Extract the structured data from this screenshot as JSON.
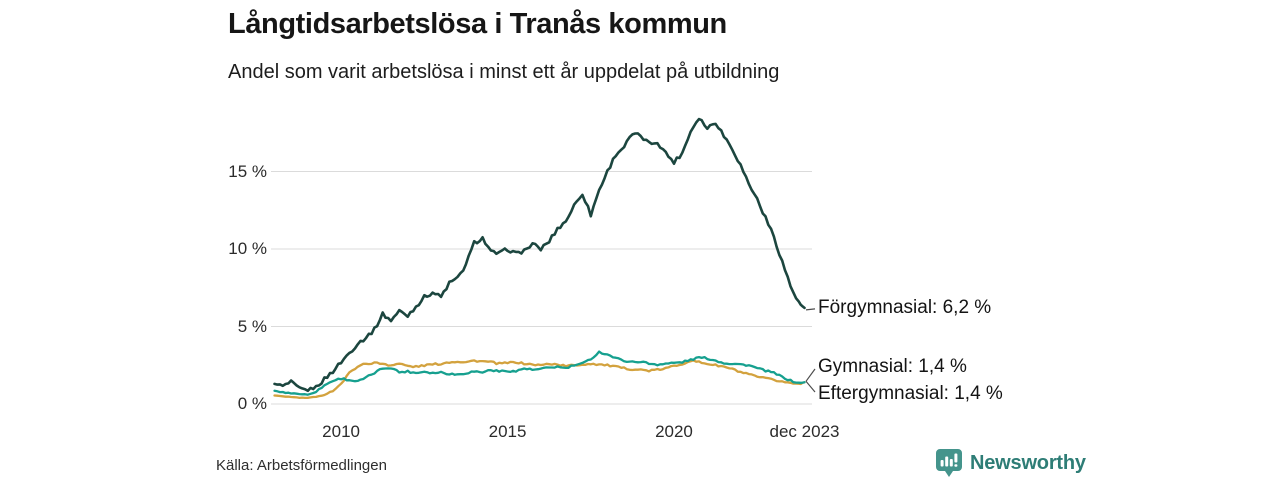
{
  "meta": {
    "title": "Långtidsarbetslösa i Tranås kommun",
    "subtitle": "Andel som varit arbetslösa i minst ett år uppdelat på utbildning",
    "source": "Källa: Arbetsförmedlingen"
  },
  "brand": {
    "name": "Newsworthy",
    "logo_icon": "bar-chart-speech-bubble-icon",
    "text_color": "#2e7d76",
    "icon_color": "#44948c"
  },
  "chart_data": {
    "type": "line",
    "title": "Långtidsarbetslösa i Tranås kommun",
    "subtitle": "Andel som varit arbetslösa i minst ett år uppdelat på utbildning",
    "x_range": [
      2008.0,
      2023.92
    ],
    "ylim": [
      0,
      19
    ],
    "grid": true,
    "legend_position": "right-end-labels",
    "y_ticks": [
      {
        "v": 0,
        "label": "0 %"
      },
      {
        "v": 5,
        "label": "5 %"
      },
      {
        "v": 10,
        "label": "10 %"
      },
      {
        "v": 15,
        "label": "15 %"
      }
    ],
    "x_ticks": [
      {
        "v": 2010,
        "label": "2010"
      },
      {
        "v": 2015,
        "label": "2015"
      },
      {
        "v": 2020,
        "label": "2020"
      },
      {
        "v": 2023.92,
        "label": "dec 2023"
      }
    ],
    "series": [
      {
        "name": "Förgymnasial",
        "end_value": "6,2 %",
        "end_label": "Förgymnasial: 6,2 %",
        "color": "#1c463f",
        "points": [
          [
            2008.0,
            1.3
          ],
          [
            2008.25,
            1.15
          ],
          [
            2008.5,
            1.4
          ],
          [
            2008.75,
            1.0
          ],
          [
            2009.0,
            0.9
          ],
          [
            2009.25,
            1.1
          ],
          [
            2009.5,
            1.6
          ],
          [
            2009.75,
            2.1
          ],
          [
            2010.0,
            2.7
          ],
          [
            2010.25,
            3.3
          ],
          [
            2010.5,
            3.9
          ],
          [
            2010.75,
            4.3
          ],
          [
            2011.0,
            4.8
          ],
          [
            2011.25,
            5.8
          ],
          [
            2011.5,
            5.4
          ],
          [
            2011.75,
            6.0
          ],
          [
            2012.0,
            5.7
          ],
          [
            2012.25,
            6.3
          ],
          [
            2012.5,
            6.9
          ],
          [
            2012.75,
            7.2
          ],
          [
            2013.0,
            6.9
          ],
          [
            2013.25,
            7.8
          ],
          [
            2013.5,
            8.1
          ],
          [
            2013.75,
            9.0
          ],
          [
            2014.0,
            10.4
          ],
          [
            2014.25,
            10.7
          ],
          [
            2014.5,
            9.8
          ],
          [
            2014.75,
            9.7
          ],
          [
            2015.0,
            10.0
          ],
          [
            2015.25,
            9.7
          ],
          [
            2015.5,
            9.9
          ],
          [
            2015.75,
            10.3
          ],
          [
            2016.0,
            10.0
          ],
          [
            2016.25,
            10.5
          ],
          [
            2016.5,
            11.3
          ],
          [
            2016.75,
            11.8
          ],
          [
            2017.0,
            12.8
          ],
          [
            2017.25,
            13.6
          ],
          [
            2017.5,
            12.2
          ],
          [
            2017.75,
            13.8
          ],
          [
            2018.0,
            15.0
          ],
          [
            2018.25,
            16.1
          ],
          [
            2018.5,
            16.6
          ],
          [
            2018.75,
            17.4
          ],
          [
            2019.0,
            17.3
          ],
          [
            2019.25,
            16.8
          ],
          [
            2019.5,
            16.9
          ],
          [
            2019.75,
            16.2
          ],
          [
            2020.0,
            15.6
          ],
          [
            2020.25,
            16.2
          ],
          [
            2020.5,
            17.6
          ],
          [
            2020.75,
            18.5
          ],
          [
            2021.0,
            17.8
          ],
          [
            2021.25,
            18.2
          ],
          [
            2021.5,
            17.3
          ],
          [
            2021.75,
            16.5
          ],
          [
            2022.0,
            15.4
          ],
          [
            2022.25,
            14.2
          ],
          [
            2022.5,
            13.2
          ],
          [
            2022.75,
            12.0
          ],
          [
            2023.0,
            10.8
          ],
          [
            2023.25,
            9.2
          ],
          [
            2023.5,
            7.6
          ],
          [
            2023.75,
            6.5
          ],
          [
            2023.92,
            6.2
          ]
        ]
      },
      {
        "name": "Gymnasial",
        "end_value": "1,4 %",
        "end_label": "Gymnasial: 1,4 %",
        "color": "#16a08f",
        "points": [
          [
            2008.0,
            0.85
          ],
          [
            2008.25,
            0.75
          ],
          [
            2008.5,
            0.7
          ],
          [
            2008.75,
            0.65
          ],
          [
            2009.0,
            0.6
          ],
          [
            2009.25,
            0.8
          ],
          [
            2009.5,
            1.2
          ],
          [
            2009.75,
            1.5
          ],
          [
            2010.0,
            1.65
          ],
          [
            2010.25,
            1.55
          ],
          [
            2010.5,
            1.45
          ],
          [
            2010.75,
            1.7
          ],
          [
            2011.0,
            2.0
          ],
          [
            2011.25,
            2.3
          ],
          [
            2011.5,
            2.35
          ],
          [
            2011.75,
            2.05
          ],
          [
            2012.0,
            2.1
          ],
          [
            2012.25,
            2.0
          ],
          [
            2012.5,
            2.1
          ],
          [
            2012.75,
            2.0
          ],
          [
            2013.0,
            2.05
          ],
          [
            2013.25,
            1.95
          ],
          [
            2013.5,
            1.9
          ],
          [
            2013.75,
            2.0
          ],
          [
            2014.0,
            2.1
          ],
          [
            2014.25,
            2.05
          ],
          [
            2014.5,
            2.2
          ],
          [
            2014.75,
            2.1
          ],
          [
            2015.0,
            2.15
          ],
          [
            2015.25,
            2.1
          ],
          [
            2015.5,
            2.3
          ],
          [
            2015.75,
            2.2
          ],
          [
            2016.0,
            2.25
          ],
          [
            2016.25,
            2.35
          ],
          [
            2016.5,
            2.4
          ],
          [
            2016.75,
            2.3
          ],
          [
            2017.0,
            2.5
          ],
          [
            2017.25,
            2.6
          ],
          [
            2017.5,
            2.9
          ],
          [
            2017.75,
            3.35
          ],
          [
            2018.0,
            3.2
          ],
          [
            2018.25,
            2.95
          ],
          [
            2018.5,
            2.8
          ],
          [
            2018.75,
            2.7
          ],
          [
            2019.0,
            2.75
          ],
          [
            2019.25,
            2.6
          ],
          [
            2019.5,
            2.55
          ],
          [
            2019.75,
            2.6
          ],
          [
            2020.0,
            2.65
          ],
          [
            2020.25,
            2.7
          ],
          [
            2020.5,
            2.85
          ],
          [
            2020.75,
            3.0
          ],
          [
            2021.0,
            2.95
          ],
          [
            2021.25,
            2.8
          ],
          [
            2021.5,
            2.65
          ],
          [
            2021.75,
            2.6
          ],
          [
            2022.0,
            2.55
          ],
          [
            2022.25,
            2.5
          ],
          [
            2022.5,
            2.3
          ],
          [
            2022.75,
            2.15
          ],
          [
            2023.0,
            2.0
          ],
          [
            2023.25,
            1.75
          ],
          [
            2023.5,
            1.5
          ],
          [
            2023.75,
            1.35
          ],
          [
            2023.92,
            1.4
          ]
        ]
      },
      {
        "name": "Eftergymnasial",
        "end_value": "1,4 %",
        "end_label": "Eftergymnasial: 1,4 %",
        "color": "#d3a23e",
        "points": [
          [
            2008.0,
            0.55
          ],
          [
            2008.25,
            0.5
          ],
          [
            2008.5,
            0.45
          ],
          [
            2008.75,
            0.4
          ],
          [
            2009.0,
            0.4
          ],
          [
            2009.25,
            0.45
          ],
          [
            2009.5,
            0.6
          ],
          [
            2009.75,
            0.85
          ],
          [
            2010.0,
            1.3
          ],
          [
            2010.25,
            2.0
          ],
          [
            2010.5,
            2.45
          ],
          [
            2010.75,
            2.6
          ],
          [
            2011.0,
            2.65
          ],
          [
            2011.25,
            2.6
          ],
          [
            2011.5,
            2.5
          ],
          [
            2011.75,
            2.6
          ],
          [
            2012.0,
            2.45
          ],
          [
            2012.25,
            2.4
          ],
          [
            2012.5,
            2.5
          ],
          [
            2012.75,
            2.55
          ],
          [
            2013.0,
            2.6
          ],
          [
            2013.25,
            2.7
          ],
          [
            2013.5,
            2.75
          ],
          [
            2013.75,
            2.7
          ],
          [
            2014.0,
            2.8
          ],
          [
            2014.25,
            2.75
          ],
          [
            2014.5,
            2.7
          ],
          [
            2014.75,
            2.6
          ],
          [
            2015.0,
            2.65
          ],
          [
            2015.25,
            2.7
          ],
          [
            2015.5,
            2.6
          ],
          [
            2015.75,
            2.55
          ],
          [
            2016.0,
            2.5
          ],
          [
            2016.25,
            2.6
          ],
          [
            2016.5,
            2.55
          ],
          [
            2016.75,
            2.45
          ],
          [
            2017.0,
            2.5
          ],
          [
            2017.25,
            2.55
          ],
          [
            2017.5,
            2.6
          ],
          [
            2017.75,
            2.55
          ],
          [
            2018.0,
            2.5
          ],
          [
            2018.25,
            2.4
          ],
          [
            2018.5,
            2.3
          ],
          [
            2018.75,
            2.25
          ],
          [
            2019.0,
            2.2
          ],
          [
            2019.25,
            2.15
          ],
          [
            2019.5,
            2.2
          ],
          [
            2019.75,
            2.3
          ],
          [
            2020.0,
            2.45
          ],
          [
            2020.25,
            2.6
          ],
          [
            2020.5,
            2.8
          ],
          [
            2020.75,
            2.7
          ],
          [
            2021.0,
            2.6
          ],
          [
            2021.25,
            2.5
          ],
          [
            2021.5,
            2.4
          ],
          [
            2021.75,
            2.25
          ],
          [
            2022.0,
            2.05
          ],
          [
            2022.25,
            1.9
          ],
          [
            2022.5,
            1.75
          ],
          [
            2022.75,
            1.65
          ],
          [
            2023.0,
            1.55
          ],
          [
            2023.25,
            1.45
          ],
          [
            2023.5,
            1.35
          ],
          [
            2023.75,
            1.3
          ],
          [
            2023.92,
            1.4
          ]
        ]
      }
    ]
  }
}
